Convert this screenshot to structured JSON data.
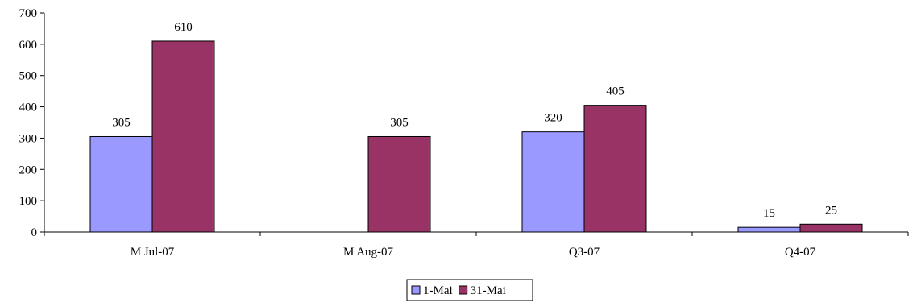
{
  "chart_data": {
    "type": "bar",
    "categories": [
      "M Jul-07",
      "M Aug-07",
      "Q3-07",
      "Q4-07"
    ],
    "series": [
      {
        "name": "1-Mai",
        "values": [
          305,
          null,
          320,
          15
        ],
        "color": "#9999ff"
      },
      {
        "name": "31-Mai",
        "values": [
          610,
          305,
          405,
          25
        ],
        "color": "#993366"
      }
    ],
    "data_labels": [
      [
        "305",
        "",
        "320",
        "15"
      ],
      [
        "610",
        "305",
        "405",
        "25"
      ]
    ],
    "ylim": [
      0,
      700
    ],
    "yticks": [
      0,
      100,
      200,
      300,
      400,
      500,
      600,
      700
    ],
    "ytick_labels": [
      "0",
      "100",
      "200",
      "300",
      "400",
      "500",
      "600",
      "700"
    ],
    "title": "",
    "xlabel": "",
    "ylabel": "",
    "grid": false,
    "legend": "bottom-center"
  }
}
